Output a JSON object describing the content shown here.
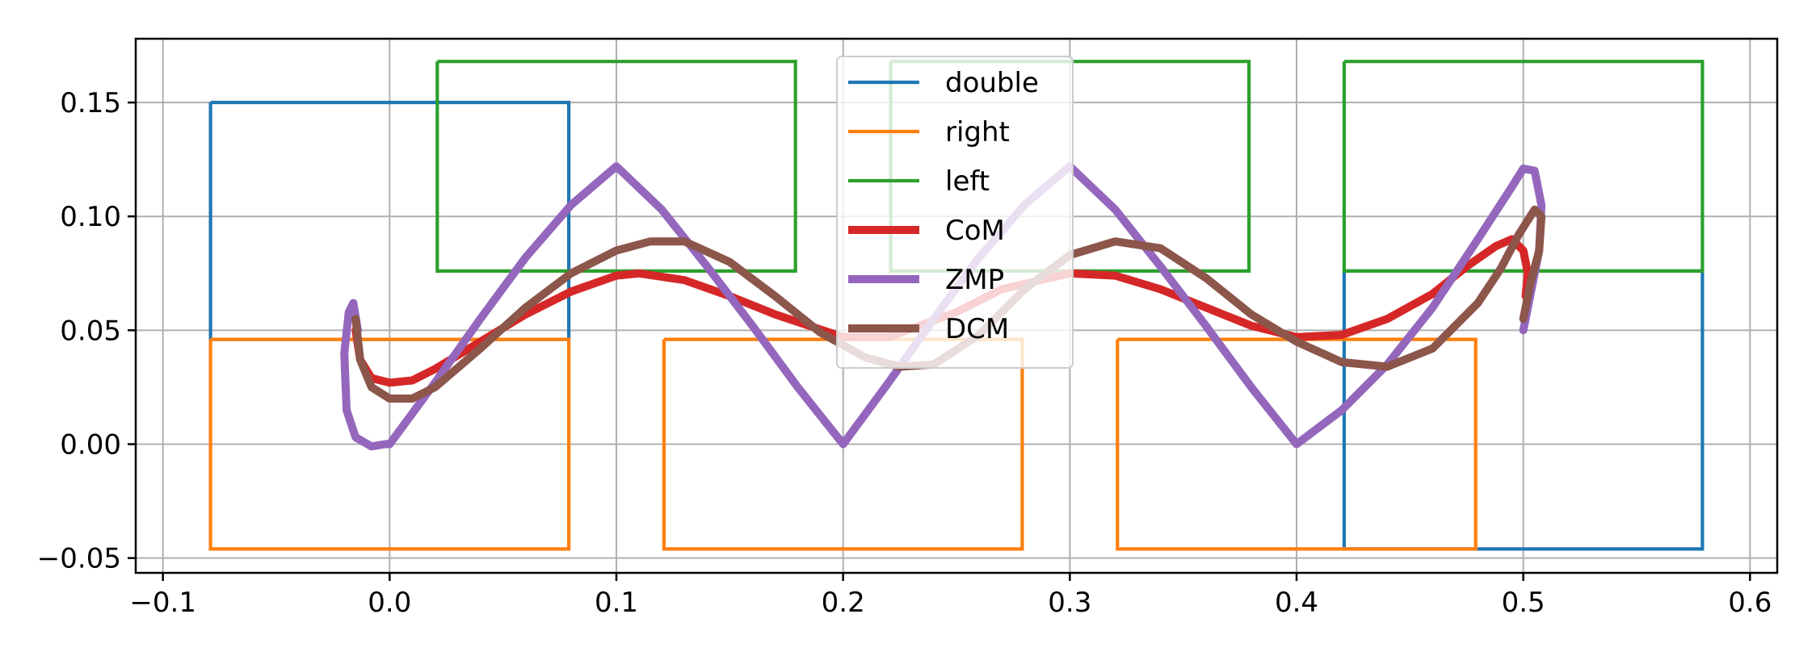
{
  "chart_data": {
    "type": "line",
    "title": "",
    "xlabel": "",
    "ylabel": "",
    "xlim": [
      -0.112,
      0.612
    ],
    "ylim": [
      -0.0565,
      0.178
    ],
    "xticks": [
      -0.1,
      0.0,
      0.1,
      0.2,
      0.3,
      0.4,
      0.5,
      0.6
    ],
    "xtick_labels": [
      "−0.1",
      "0.0",
      "0.1",
      "0.2",
      "0.3",
      "0.4",
      "0.5",
      "0.6"
    ],
    "yticks": [
      -0.05,
      0.0,
      0.05,
      0.1,
      0.15
    ],
    "ytick_labels": [
      "−0.05",
      "0.00",
      "0.05",
      "0.10",
      "0.15"
    ],
    "grid": true,
    "legend_position": "top-center",
    "series": [
      {
        "name": "double",
        "color": "#1f77b4",
        "width": "thin",
        "segments": [
          [
            [
              -0.079,
              0.15
            ],
            [
              0.079,
              0.15
            ],
            [
              0.079,
              0.046
            ],
            [
              -0.079,
              0.046
            ],
            [
              -0.079,
              0.15
            ]
          ],
          [
            [
              0.421,
              0.076
            ],
            [
              0.579,
              0.076
            ],
            [
              0.579,
              -0.046
            ],
            [
              0.421,
              -0.046
            ],
            [
              0.421,
              0.076
            ]
          ]
        ]
      },
      {
        "name": "right",
        "color": "#ff7f0e",
        "width": "thin",
        "segments": [
          [
            [
              -0.079,
              0.046
            ],
            [
              0.079,
              0.046
            ],
            [
              0.079,
              -0.046
            ],
            [
              -0.079,
              -0.046
            ],
            [
              -0.079,
              0.046
            ]
          ],
          [
            [
              0.121,
              0.046
            ],
            [
              0.279,
              0.046
            ],
            [
              0.279,
              -0.046
            ],
            [
              0.121,
              -0.046
            ],
            [
              0.121,
              0.046
            ]
          ],
          [
            [
              0.321,
              0.046
            ],
            [
              0.479,
              0.046
            ],
            [
              0.479,
              -0.046
            ],
            [
              0.321,
              -0.046
            ],
            [
              0.321,
              0.046
            ]
          ]
        ]
      },
      {
        "name": "left",
        "color": "#2ca02c",
        "width": "thin",
        "segments": [
          [
            [
              0.021,
              0.168
            ],
            [
              0.179,
              0.168
            ],
            [
              0.179,
              0.076
            ],
            [
              0.021,
              0.076
            ],
            [
              0.021,
              0.168
            ]
          ],
          [
            [
              0.221,
              0.168
            ],
            [
              0.379,
              0.168
            ],
            [
              0.379,
              0.076
            ],
            [
              0.221,
              0.076
            ],
            [
              0.221,
              0.168
            ]
          ],
          [
            [
              0.421,
              0.168
            ],
            [
              0.579,
              0.168
            ],
            [
              0.579,
              0.076
            ],
            [
              0.421,
              0.076
            ],
            [
              0.421,
              0.168
            ]
          ]
        ]
      },
      {
        "name": "CoM",
        "color": "#d62728",
        "width": "thick",
        "segments": [
          [
            [
              -0.015,
              0.05
            ],
            [
              -0.013,
              0.037
            ],
            [
              -0.008,
              0.029
            ],
            [
              0.0,
              0.027
            ],
            [
              0.01,
              0.028
            ],
            [
              0.02,
              0.033
            ],
            [
              0.04,
              0.045
            ],
            [
              0.06,
              0.057
            ],
            [
              0.08,
              0.067
            ],
            [
              0.1,
              0.074
            ],
            [
              0.11,
              0.075
            ],
            [
              0.13,
              0.072
            ],
            [
              0.15,
              0.065
            ],
            [
              0.17,
              0.057
            ],
            [
              0.2,
              0.047
            ],
            [
              0.22,
              0.047
            ],
            [
              0.25,
              0.058
            ],
            [
              0.27,
              0.068
            ],
            [
              0.3,
              0.075
            ],
            [
              0.32,
              0.074
            ],
            [
              0.34,
              0.068
            ],
            [
              0.36,
              0.06
            ],
            [
              0.38,
              0.052
            ],
            [
              0.4,
              0.047
            ],
            [
              0.42,
              0.048
            ],
            [
              0.44,
              0.055
            ],
            [
              0.46,
              0.066
            ],
            [
              0.475,
              0.078
            ],
            [
              0.488,
              0.087
            ],
            [
              0.495,
              0.09
            ],
            [
              0.5,
              0.085
            ],
            [
              0.502,
              0.075
            ],
            [
              0.501,
              0.065
            ]
          ]
        ]
      },
      {
        "name": "ZMP",
        "color": "#9467bd",
        "width": "thick",
        "segments": [
          [
            [
              -0.014,
              0.05
            ],
            [
              -0.016,
              0.062
            ],
            [
              -0.018,
              0.058
            ],
            [
              -0.02,
              0.04
            ],
            [
              -0.019,
              0.015
            ],
            [
              -0.015,
              0.003
            ],
            [
              -0.008,
              -0.001
            ],
            [
              -0.002,
              0.0
            ],
            [
              0.0,
              0.0
            ],
            [
              0.02,
              0.027
            ],
            [
              0.04,
              0.055
            ],
            [
              0.06,
              0.082
            ],
            [
              0.08,
              0.105
            ],
            [
              0.1,
              0.122
            ],
            [
              0.12,
              0.103
            ],
            [
              0.14,
              0.078
            ],
            [
              0.16,
              0.052
            ],
            [
              0.18,
              0.025
            ],
            [
              0.2,
              0.0
            ],
            [
              0.22,
              0.027
            ],
            [
              0.24,
              0.055
            ],
            [
              0.26,
              0.082
            ],
            [
              0.28,
              0.105
            ],
            [
              0.3,
              0.122
            ],
            [
              0.32,
              0.103
            ],
            [
              0.34,
              0.078
            ],
            [
              0.36,
              0.052
            ],
            [
              0.38,
              0.025
            ],
            [
              0.4,
              0.0
            ],
            [
              0.42,
              0.015
            ],
            [
              0.44,
              0.035
            ],
            [
              0.46,
              0.06
            ],
            [
              0.48,
              0.09
            ],
            [
              0.495,
              0.113
            ],
            [
              0.5,
              0.121
            ],
            [
              0.505,
              0.12
            ],
            [
              0.508,
              0.105
            ],
            [
              0.507,
              0.085
            ],
            [
              0.503,
              0.065
            ],
            [
              0.5,
              0.05
            ]
          ]
        ]
      },
      {
        "name": "DCM",
        "color": "#8c564b",
        "width": "thick",
        "segments": [
          [
            [
              -0.015,
              0.055
            ],
            [
              -0.013,
              0.037
            ],
            [
              -0.008,
              0.025
            ],
            [
              0.0,
              0.02
            ],
            [
              0.01,
              0.02
            ],
            [
              0.02,
              0.025
            ],
            [
              0.04,
              0.042
            ],
            [
              0.06,
              0.06
            ],
            [
              0.08,
              0.075
            ],
            [
              0.1,
              0.085
            ],
            [
              0.115,
              0.089
            ],
            [
              0.13,
              0.089
            ],
            [
              0.15,
              0.08
            ],
            [
              0.17,
              0.065
            ],
            [
              0.19,
              0.049
            ],
            [
              0.21,
              0.038
            ],
            [
              0.225,
              0.034
            ],
            [
              0.24,
              0.035
            ],
            [
              0.26,
              0.048
            ],
            [
              0.28,
              0.068
            ],
            [
              0.3,
              0.083
            ],
            [
              0.32,
              0.089
            ],
            [
              0.34,
              0.086
            ],
            [
              0.36,
              0.073
            ],
            [
              0.38,
              0.057
            ],
            [
              0.4,
              0.045
            ],
            [
              0.42,
              0.036
            ],
            [
              0.44,
              0.034
            ],
            [
              0.46,
              0.042
            ],
            [
              0.48,
              0.062
            ],
            [
              0.49,
              0.077
            ],
            [
              0.498,
              0.092
            ],
            [
              0.505,
              0.103
            ],
            [
              0.508,
              0.1
            ],
            [
              0.507,
              0.085
            ],
            [
              0.503,
              0.07
            ],
            [
              0.5,
              0.055
            ]
          ]
        ]
      }
    ]
  }
}
